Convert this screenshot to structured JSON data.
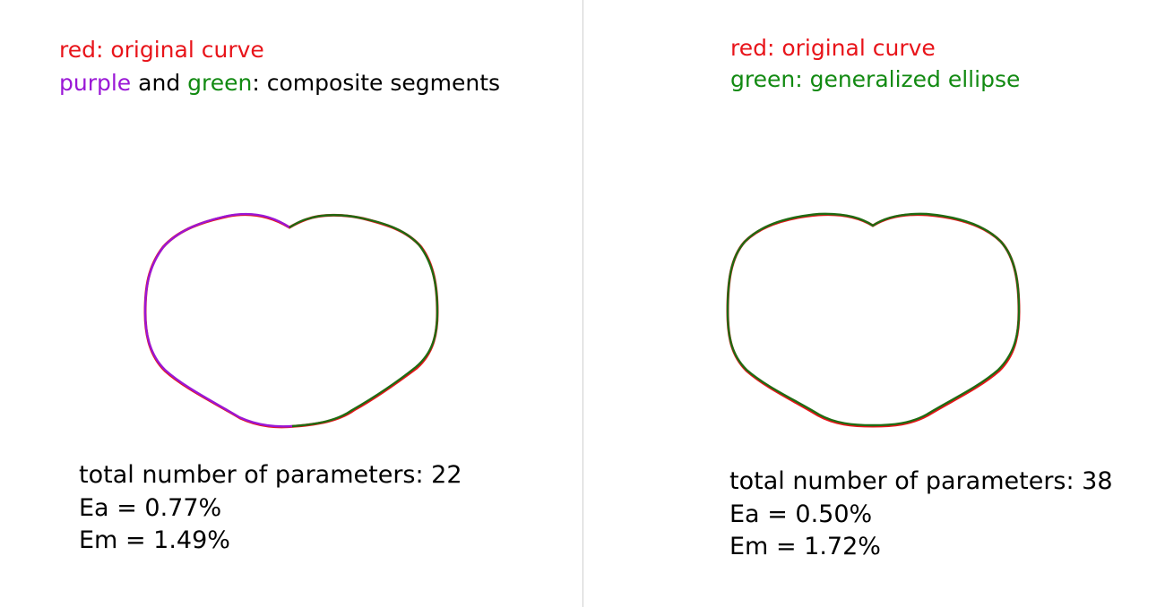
{
  "left": {
    "legend": {
      "line1": "red: original curve",
      "purple_word": "purple",
      "and_word": " and ",
      "green_word": "green",
      "rest": ": composite segments"
    },
    "stats": {
      "params": "total number of parameters: 22",
      "ea": "Ea = 0.77%",
      "em": "Em = 1.49%"
    }
  },
  "right": {
    "legend": {
      "line1": "red: original curve",
      "line2": "green: generalized ellipse"
    },
    "stats": {
      "params": "total number of parameters: 38",
      "ea": "Ea = 0.50%",
      "em": "Em = 1.72%"
    }
  },
  "colors": {
    "original": "#e8141a",
    "purple": "#9a17d6",
    "green": "#1f6b12",
    "divider": "#cfcfcf"
  }
}
